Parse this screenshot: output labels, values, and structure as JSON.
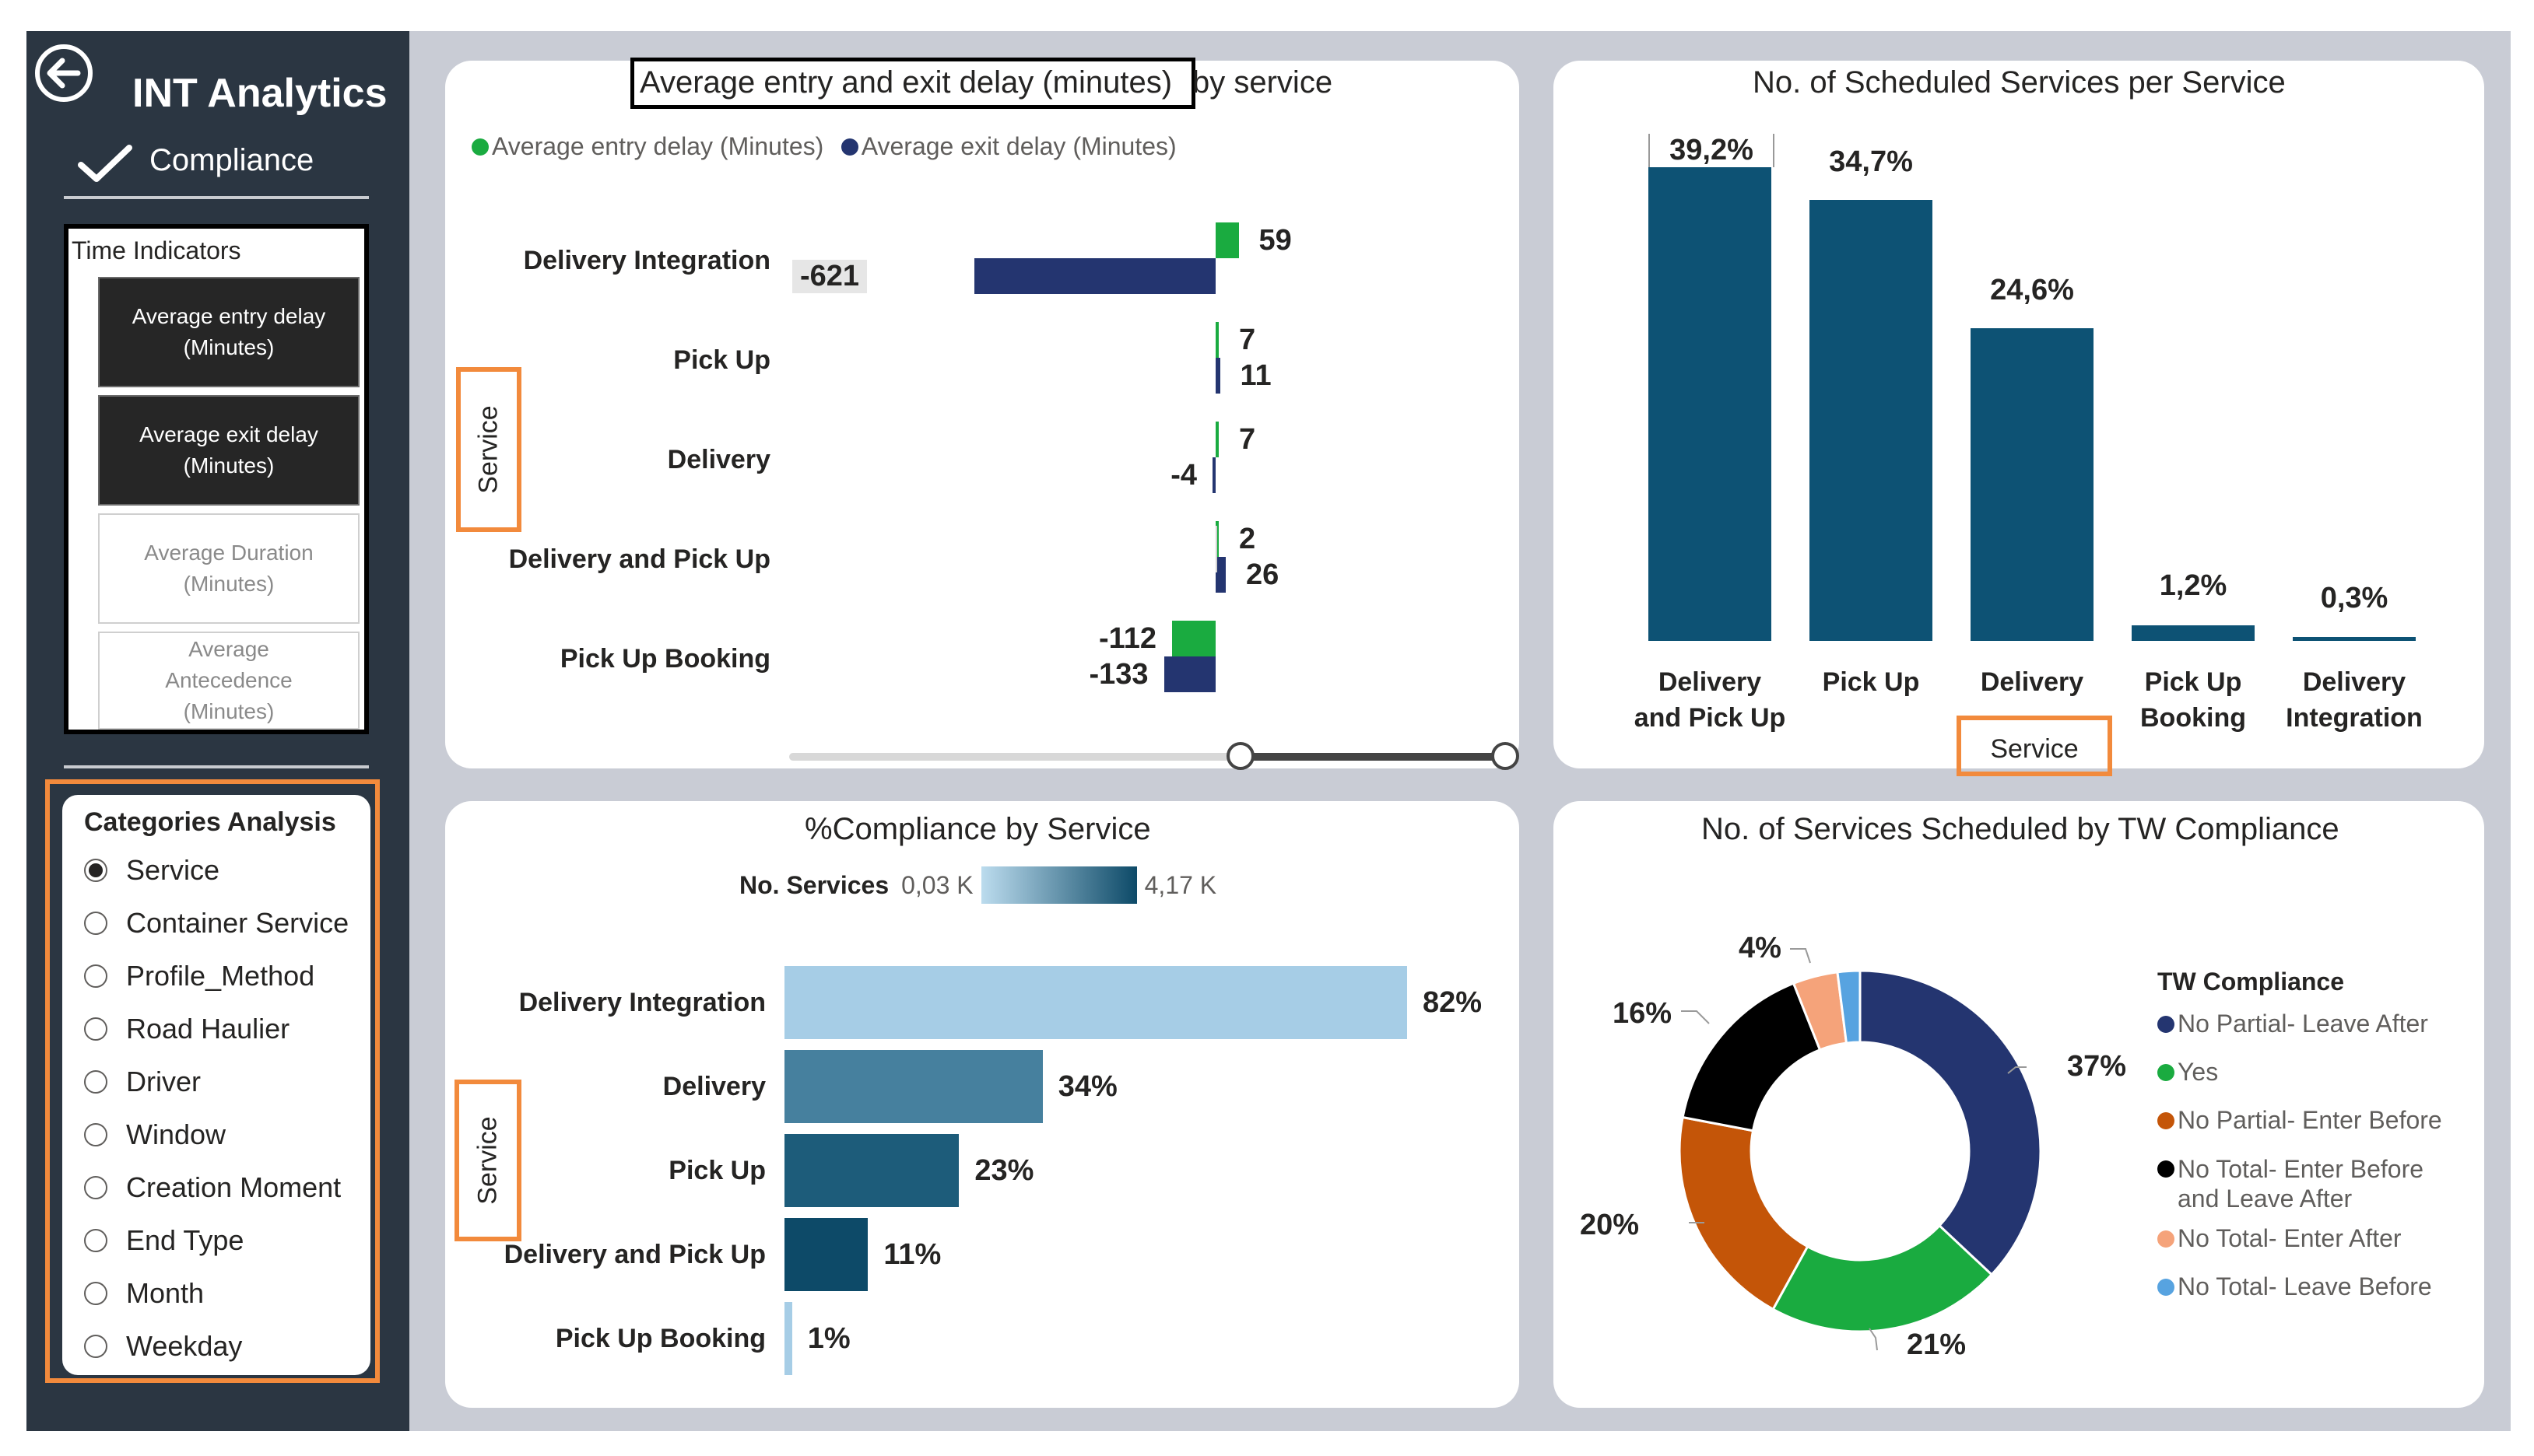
{
  "sidebar": {
    "title": "INT Analytics",
    "subtitle": "Compliance",
    "time_indicators": {
      "title": "Time Indicators",
      "buttons": [
        {
          "label": "Average entry delay (Minutes)",
          "state": "selected"
        },
        {
          "label": "Average exit delay (Minutes)",
          "state": "selected"
        },
        {
          "label": "Average Duration (Minutes)",
          "state": "unselected"
        },
        {
          "label": "Average Antecedence (Minutes)",
          "state": "unselected"
        }
      ]
    },
    "categories": {
      "title": "Categories Analysis",
      "options": [
        "Service",
        "Container Service",
        "Profile_Method",
        "Road Haulier",
        "Driver",
        "Window",
        "Creation Moment",
        "End Type",
        "Month",
        "Weekday"
      ],
      "selected": "Service"
    }
  },
  "delay_chart": {
    "title_boxed": "Average entry and exit delay (minutes)",
    "title_rest": " by service",
    "axis_label": "Service",
    "legend": [
      {
        "label": "Average entry delay (Minutes)",
        "color": "#1aab40"
      },
      {
        "label": "Average exit delay (Minutes)",
        "color": "#243570"
      }
    ],
    "rows": [
      {
        "category": "Delivery Integration",
        "entry": 59,
        "exit": -621
      },
      {
        "category": "Pick Up",
        "entry": 7,
        "exit": 11
      },
      {
        "category": "Delivery",
        "entry": 7,
        "exit": -4
      },
      {
        "category": "Delivery and Pick Up",
        "entry": 2,
        "exit": 26
      },
      {
        "category": "Pick Up Booking",
        "entry": -112,
        "exit": -133
      }
    ]
  },
  "scheduled_chart": {
    "title": "No. of Scheduled Services per Service",
    "axis_label": "Service",
    "color": "#0d5274",
    "bars": [
      {
        "category": "Delivery and Pick Up",
        "label": "39,2%",
        "value": 39.2
      },
      {
        "category": "Pick Up",
        "label": "34,7%",
        "value": 34.7
      },
      {
        "category": "Delivery",
        "label": "24,6%",
        "value": 24.6
      },
      {
        "category": "Pick Up Booking",
        "label": "1,2%",
        "value": 1.2
      },
      {
        "category": "Delivery Integration",
        "label": "0,3%",
        "value": 0.3
      }
    ]
  },
  "compliance_chart": {
    "title": "%Compliance by Service",
    "axis_label": "Service",
    "color_legend": {
      "label": "No. Services",
      "min": "0,03 K",
      "max": "4,17 K"
    },
    "bars": [
      {
        "category": "Delivery Integration",
        "label": "82%",
        "value": 82,
        "color": "#a6cde6"
      },
      {
        "category": "Delivery",
        "label": "34%",
        "value": 34,
        "color": "#46809e"
      },
      {
        "category": "Pick Up",
        "label": "23%",
        "value": 23,
        "color": "#1d5c7a"
      },
      {
        "category": "Delivery and Pick Up",
        "label": "11%",
        "value": 11,
        "color": "#0d4a68"
      },
      {
        "category": "Pick Up Booking",
        "label": "1%",
        "value": 1,
        "color": "#a6cde6"
      }
    ]
  },
  "tw_chart": {
    "title": "No. of Services Scheduled by TW Compliance",
    "legend_title": "TW Compliance",
    "slices": [
      {
        "name": "No Partial- Leave After",
        "value": 37,
        "label": "37%",
        "color": "#243570"
      },
      {
        "name": "Yes",
        "value": 21,
        "label": "21%",
        "color": "#1aab40"
      },
      {
        "name": "No Partial- Enter Before",
        "value": 20,
        "label": "20%",
        "color": "#c45508"
      },
      {
        "name": "No Total- Enter Before and Leave After",
        "value": 16,
        "label": "16%",
        "color": "#000000"
      },
      {
        "name": "No Total- Enter After",
        "value": 4,
        "label": "4%",
        "color": "#f5a37a"
      },
      {
        "name": "No Total- Leave Before",
        "value": 2,
        "label": "",
        "color": "#57a3e0"
      }
    ]
  },
  "chart_data": [
    {
      "type": "bar",
      "title": "Average entry and exit delay (minutes) by service",
      "orientation": "horizontal",
      "categories": [
        "Delivery Integration",
        "Pick Up",
        "Delivery",
        "Delivery and Pick Up",
        "Pick Up Booking"
      ],
      "series": [
        {
          "name": "Average entry delay (Minutes)",
          "values": [
            59,
            7,
            7,
            2,
            -112
          ]
        },
        {
          "name": "Average exit delay (Minutes)",
          "values": [
            -621,
            11,
            -4,
            26,
            -133
          ]
        }
      ],
      "ylabel": "Service"
    },
    {
      "type": "bar",
      "title": "No. of Scheduled Services per Service",
      "categories": [
        "Delivery and Pick Up",
        "Pick Up",
        "Delivery",
        "Pick Up Booking",
        "Delivery Integration"
      ],
      "values": [
        39.2,
        34.7,
        24.6,
        1.2,
        0.3
      ],
      "xlabel": "Service"
    },
    {
      "type": "bar",
      "title": "%Compliance by Service",
      "orientation": "horizontal",
      "categories": [
        "Delivery Integration",
        "Delivery",
        "Pick Up",
        "Delivery and Pick Up",
        "Pick Up Booking"
      ],
      "values": [
        82,
        34,
        23,
        11,
        1
      ],
      "ylabel": "Service"
    },
    {
      "type": "pie",
      "title": "No. of Services Scheduled by TW Compliance",
      "categories": [
        "No Partial- Leave After",
        "Yes",
        "No Partial- Enter Before",
        "No Total- Enter Before and Leave After",
        "No Total- Enter After",
        "No Total- Leave Before"
      ],
      "values": [
        37,
        21,
        20,
        16,
        4,
        2
      ]
    }
  ]
}
